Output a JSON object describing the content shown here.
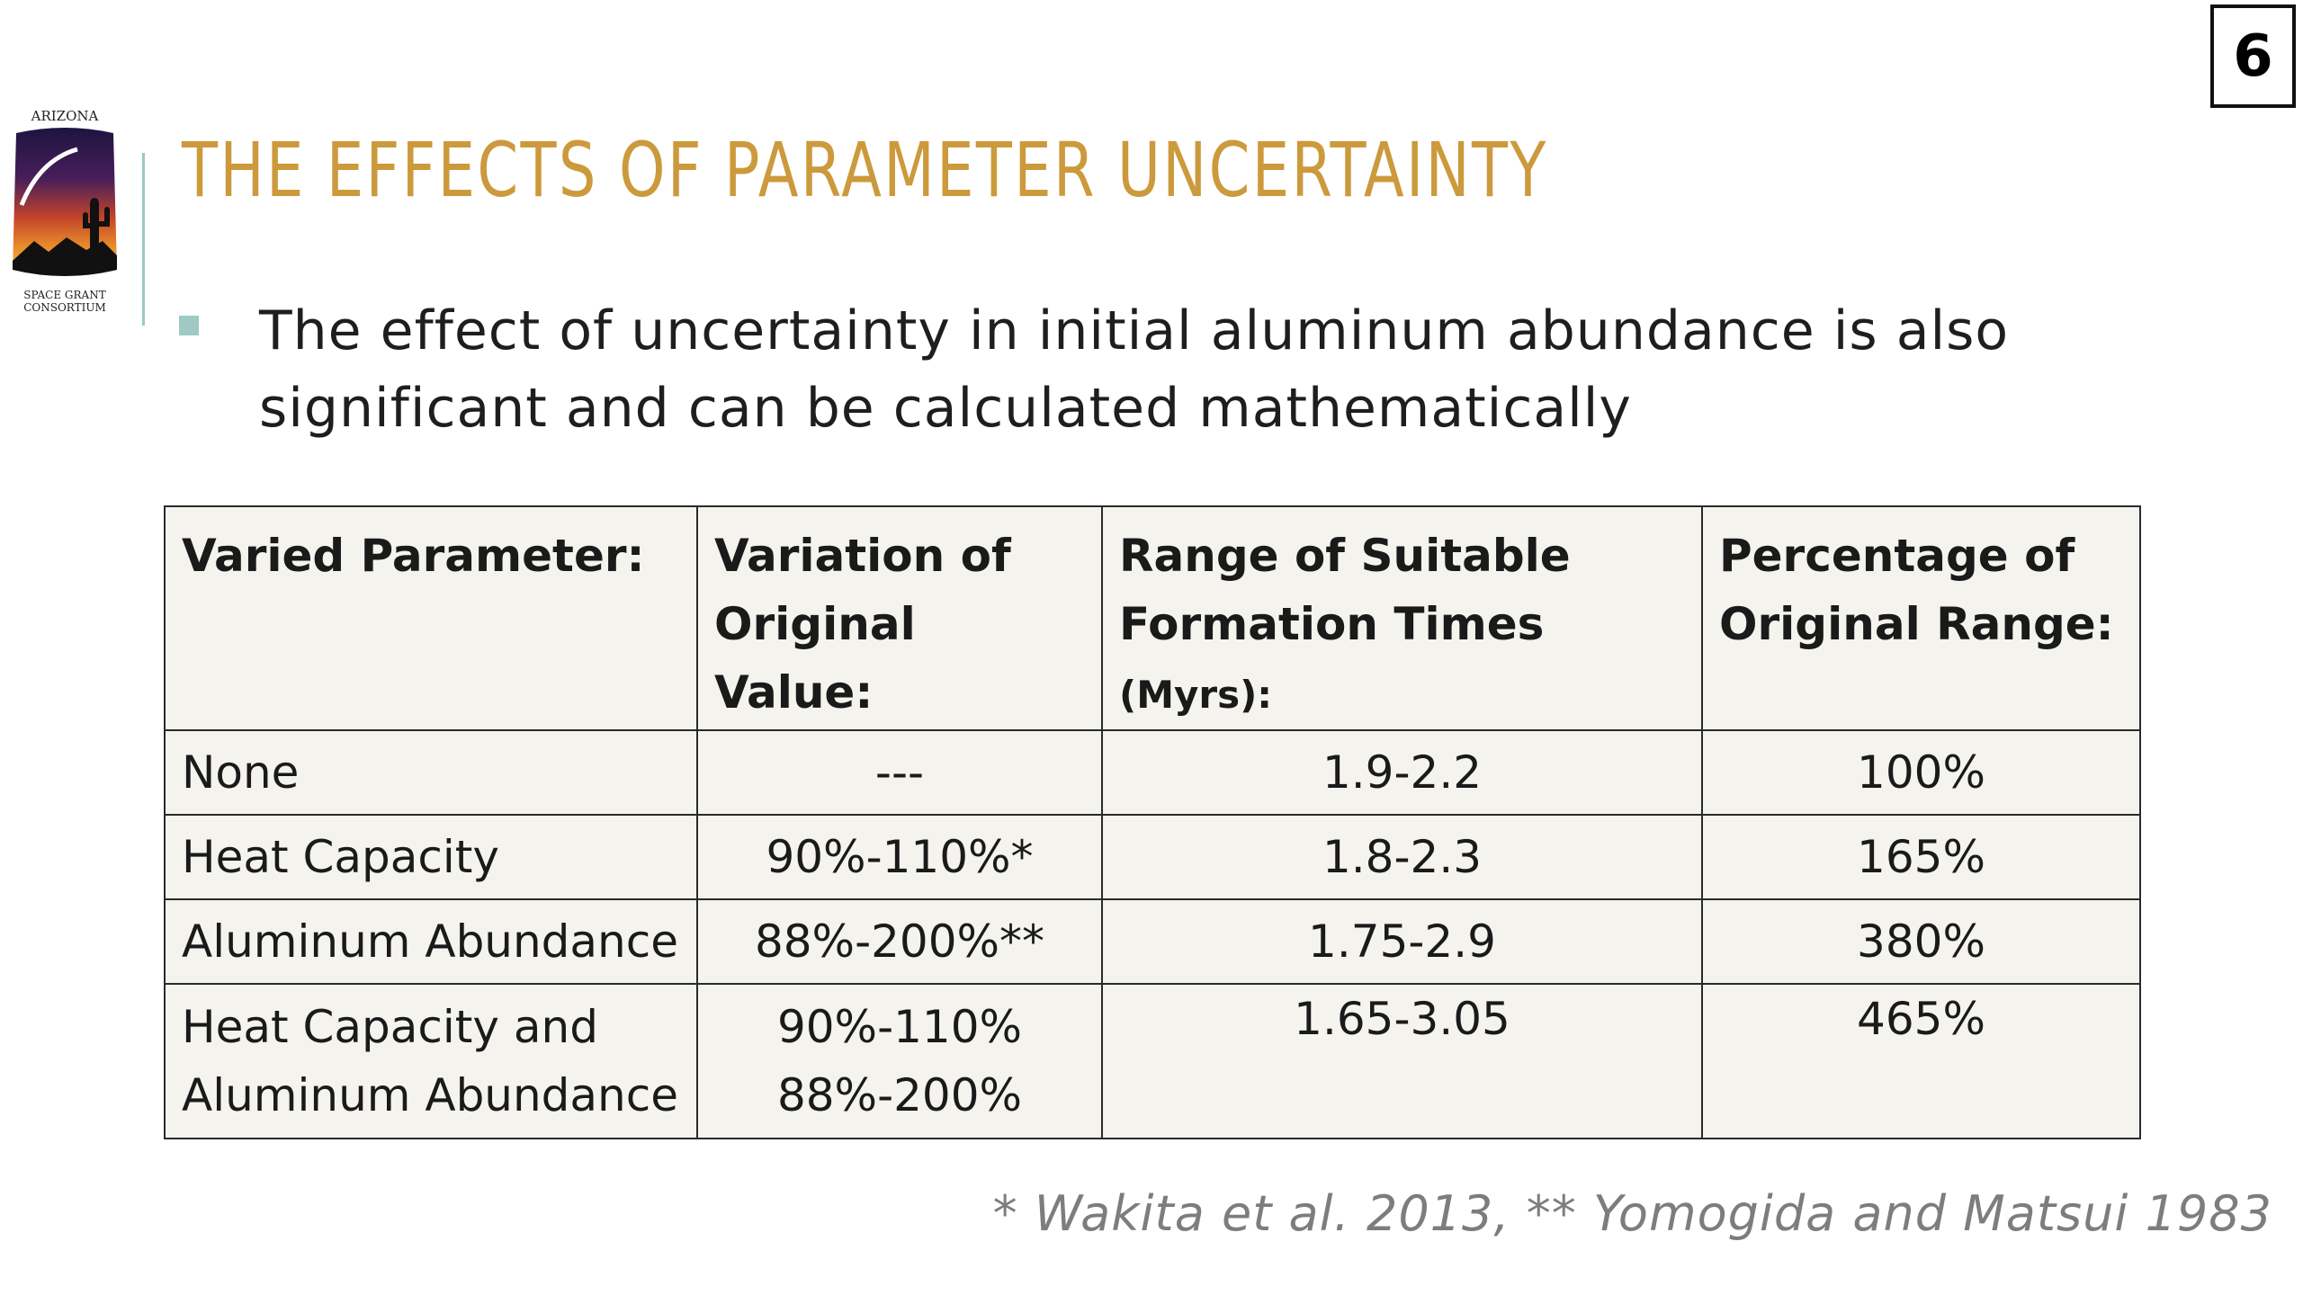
{
  "slide": {
    "number": "6"
  },
  "logo": {
    "top_text": "ARIZONA",
    "bottom_text_line1": "SPACE GRANT",
    "bottom_text_line2": "CONSORTIUM"
  },
  "title": "THE EFFECTS OF PARAMETER UNCERTAINTY",
  "bullet": "The effect of uncertainty in initial aluminum abundance is also significant and can be calculated mathematically",
  "table": {
    "headers": [
      {
        "line1": "Varied Parameter:",
        "line2": "",
        "unit": ""
      },
      {
        "line1": "Variation of",
        "line2": "Original Value:",
        "unit": ""
      },
      {
        "line1": "Range of Suitable",
        "line2": "Formation Times",
        "unit": "(Myrs):"
      },
      {
        "line1": "Percentage of",
        "line2": "Original Range:",
        "unit": ""
      }
    ],
    "rows": [
      {
        "parameter": "None",
        "variation": "---",
        "range": "1.9-2.2",
        "percentage": "100%"
      },
      {
        "parameter": "Heat Capacity",
        "variation": "90%-110%*",
        "range": "1.8-2.3",
        "percentage": "165%"
      },
      {
        "parameter": "Aluminum Abundance",
        "variation": "88%-200%**",
        "range": "1.75-2.9",
        "percentage": "380%"
      }
    ],
    "combined_row": {
      "parameter_line1": "Heat Capacity and",
      "parameter_line2": "Aluminum Abundance",
      "variation_line1": "90%-110%",
      "variation_line2": "88%-200%",
      "range": "1.65-3.05",
      "percentage": "465%"
    }
  },
  "footnote": "* Wakita et al. 2013,  ** Yomogida and Matsui 1983",
  "colors": {
    "title": "#cc9a3c",
    "accent": "#9ec9c4",
    "table_bg": "#f4f3ee",
    "footnote": "#7d7d7d"
  }
}
